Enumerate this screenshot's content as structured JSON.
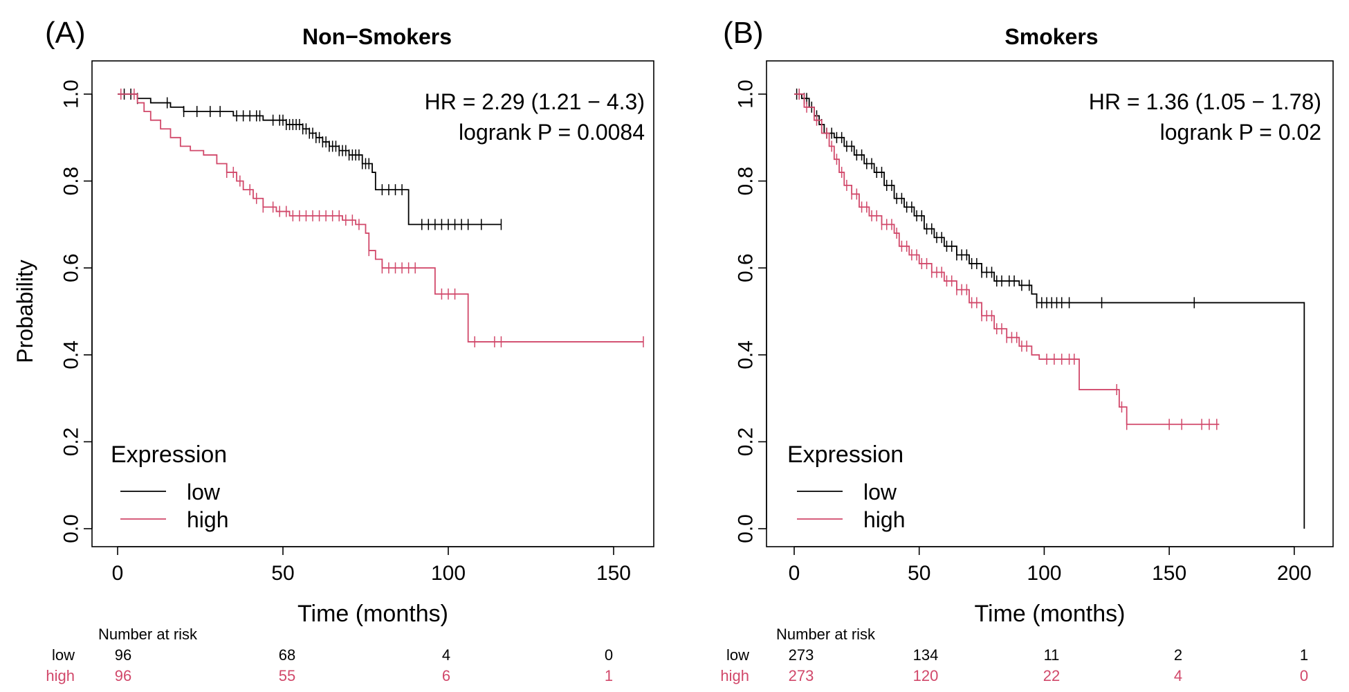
{
  "colors": {
    "low": "#000000",
    "high": "#D1486A"
  },
  "chart_data": [
    {
      "type": "line",
      "panel_label": "(A)",
      "title": "Non−Smokers",
      "xlabel": "Time (months)",
      "ylabel": "Probability",
      "xlim": [
        0,
        160
      ],
      "ylim": [
        0,
        1
      ],
      "x_ticks": [
        "0",
        "50",
        "100",
        "150"
      ],
      "x_tick_values": [
        0,
        50,
        100,
        150
      ],
      "y_ticks": [
        "0.0",
        "0.2",
        "0.4",
        "0.6",
        "0.8",
        "1.0"
      ],
      "y_tick_values": [
        0,
        0.2,
        0.4,
        0.6,
        0.8,
        1.0
      ],
      "grid": false,
      "legend": {
        "title": "Expression",
        "placement": "bottom-left",
        "entries": [
          "low",
          "high"
        ]
      },
      "annotation": {
        "hr": "HR = 2.29 (1.21 − 4.3)",
        "logrank": "logrank P = 0.0084"
      },
      "series": [
        {
          "name": "low",
          "steps": [
            [
              0,
              1.0
            ],
            [
              6,
              0.99
            ],
            [
              10,
              0.98
            ],
            [
              16,
              0.97
            ],
            [
              20,
              0.96
            ],
            [
              35,
              0.95
            ],
            [
              44,
              0.94
            ],
            [
              51,
              0.93
            ],
            [
              56,
              0.92
            ],
            [
              58,
              0.91
            ],
            [
              60,
              0.9
            ],
            [
              62,
              0.89
            ],
            [
              64,
              0.88
            ],
            [
              67,
              0.87
            ],
            [
              70,
              0.86
            ],
            [
              74,
              0.84
            ],
            [
              77,
              0.82
            ],
            [
              78,
              0.78
            ],
            [
              88,
              0.78
            ],
            [
              88,
              0.7
            ],
            [
              116,
              0.7
            ]
          ],
          "censor_times": [
            2,
            4,
            6,
            15,
            20,
            24,
            28,
            31,
            36,
            38,
            40,
            42,
            43,
            47,
            49,
            50,
            51,
            52,
            53,
            54,
            55,
            56,
            57,
            58,
            59,
            60,
            61,
            62,
            63,
            64,
            65,
            66,
            67,
            68,
            69,
            70,
            71,
            72,
            73,
            74,
            75,
            76,
            80,
            82,
            84,
            86,
            92,
            94,
            96,
            98,
            100,
            102,
            104,
            106,
            110,
            116
          ]
        },
        {
          "name": "high",
          "steps": [
            [
              0,
              1.0
            ],
            [
              6,
              0.98
            ],
            [
              8,
              0.96
            ],
            [
              10,
              0.94
            ],
            [
              13,
              0.92
            ],
            [
              16,
              0.9
            ],
            [
              19,
              0.88
            ],
            [
              22,
              0.87
            ],
            [
              26,
              0.86
            ],
            [
              30,
              0.84
            ],
            [
              33,
              0.82
            ],
            [
              36,
              0.8
            ],
            [
              38,
              0.78
            ],
            [
              41,
              0.76
            ],
            [
              44,
              0.74
            ],
            [
              48,
              0.73
            ],
            [
              52,
              0.72
            ],
            [
              68,
              0.71
            ],
            [
              72,
              0.7
            ],
            [
              75,
              0.68
            ],
            [
              76,
              0.64
            ],
            [
              78,
              0.62
            ],
            [
              80,
              0.6
            ],
            [
              96,
              0.6
            ],
            [
              96,
              0.54
            ],
            [
              106,
              0.54
            ],
            [
              106,
              0.43
            ],
            [
              159,
              0.43
            ]
          ],
          "censor_times": [
            1,
            5,
            33,
            35,
            37,
            40,
            42,
            44,
            47,
            49,
            51,
            53,
            55,
            57,
            59,
            61,
            63,
            65,
            67,
            69,
            71,
            73,
            76,
            80,
            82,
            84,
            86,
            88,
            90,
            98,
            100,
            102,
            108,
            114,
            116,
            159
          ]
        }
      ],
      "at_risk": {
        "header": "Number at risk",
        "rows": [
          {
            "label": "low",
            "values": [
              "96",
              "68",
              "4",
              "0"
            ]
          },
          {
            "label": "high",
            "values": [
              "96",
              "55",
              "6",
              "1"
            ]
          }
        ]
      }
    },
    {
      "type": "line",
      "panel_label": "(B)",
      "title": "Smokers",
      "xlabel": "Time (months)",
      "ylabel": "",
      "xlim": [
        0,
        210
      ],
      "ylim": [
        0,
        1
      ],
      "x_ticks": [
        "0",
        "50",
        "100",
        "150",
        "200"
      ],
      "x_tick_values": [
        0,
        50,
        100,
        150,
        200
      ],
      "y_ticks": [
        "0.0",
        "0.2",
        "0.4",
        "0.6",
        "0.8",
        "1.0"
      ],
      "y_tick_values": [
        0,
        0.2,
        0.4,
        0.6,
        0.8,
        1.0
      ],
      "grid": false,
      "legend": {
        "title": "Expression",
        "placement": "bottom-left",
        "entries": [
          "low",
          "high"
        ]
      },
      "annotation": {
        "hr": "HR = 1.36 (1.05 − 1.78)",
        "logrank": "logrank P = 0.02"
      },
      "series": [
        {
          "name": "low",
          "steps": [
            [
              0,
              1.0
            ],
            [
              3,
              0.99
            ],
            [
              6,
              0.97
            ],
            [
              8,
              0.95
            ],
            [
              10,
              0.93
            ],
            [
              12,
              0.91
            ],
            [
              16,
              0.9
            ],
            [
              20,
              0.88
            ],
            [
              24,
              0.86
            ],
            [
              28,
              0.84
            ],
            [
              32,
              0.82
            ],
            [
              36,
              0.79
            ],
            [
              40,
              0.76
            ],
            [
              44,
              0.74
            ],
            [
              48,
              0.72
            ],
            [
              52,
              0.69
            ],
            [
              56,
              0.67
            ],
            [
              60,
              0.65
            ],
            [
              65,
              0.63
            ],
            [
              70,
              0.61
            ],
            [
              75,
              0.59
            ],
            [
              80,
              0.57
            ],
            [
              90,
              0.56
            ],
            [
              95,
              0.54
            ],
            [
              97,
              0.52
            ],
            [
              204,
              0.52
            ],
            [
              204,
              0.0
            ]
          ],
          "censor_times": [
            1,
            2,
            4,
            5,
            7,
            9,
            11,
            13,
            15,
            17,
            19,
            21,
            23,
            25,
            27,
            29,
            31,
            33,
            35,
            37,
            39,
            41,
            43,
            45,
            47,
            49,
            51,
            53,
            55,
            57,
            59,
            61,
            63,
            65,
            67,
            69,
            71,
            73,
            75,
            77,
            79,
            81,
            83,
            86,
            88,
            91,
            94,
            97,
            99,
            101,
            103,
            105,
            107,
            110,
            123,
            160
          ]
        },
        {
          "name": "high",
          "steps": [
            [
              0,
              1.0
            ],
            [
              4,
              0.97
            ],
            [
              8,
              0.94
            ],
            [
              11,
              0.91
            ],
            [
              14,
              0.88
            ],
            [
              16,
              0.85
            ],
            [
              18,
              0.82
            ],
            [
              20,
              0.79
            ],
            [
              23,
              0.77
            ],
            [
              26,
              0.74
            ],
            [
              30,
              0.72
            ],
            [
              35,
              0.7
            ],
            [
              40,
              0.68
            ],
            [
              42,
              0.65
            ],
            [
              46,
              0.63
            ],
            [
              50,
              0.61
            ],
            [
              55,
              0.59
            ],
            [
              60,
              0.57
            ],
            [
              65,
              0.55
            ],
            [
              70,
              0.52
            ],
            [
              75,
              0.49
            ],
            [
              80,
              0.46
            ],
            [
              85,
              0.44
            ],
            [
              90,
              0.42
            ],
            [
              95,
              0.4
            ],
            [
              98,
              0.39
            ],
            [
              114,
              0.39
            ],
            [
              114,
              0.32
            ],
            [
              128,
              0.32
            ],
            [
              130,
              0.28
            ],
            [
              133,
              0.24
            ],
            [
              170,
              0.24
            ]
          ],
          "censor_times": [
            2,
            5,
            9,
            13,
            15,
            17,
            19,
            21,
            23,
            25,
            27,
            29,
            31,
            33,
            35,
            37,
            39,
            41,
            43,
            45,
            47,
            49,
            51,
            53,
            55,
            57,
            59,
            61,
            63,
            65,
            67,
            69,
            71,
            73,
            75,
            77,
            79,
            81,
            83,
            85,
            87,
            89,
            91,
            93,
            101,
            104,
            107,
            110,
            112,
            129,
            131,
            133,
            150,
            155,
            163,
            166,
            169
          ]
        }
      ],
      "at_risk": {
        "header": "Number at risk",
        "rows": [
          {
            "label": "low",
            "values": [
              "273",
              "134",
              "11",
              "2",
              "1"
            ]
          },
          {
            "label": "high",
            "values": [
              "273",
              "120",
              "22",
              "4",
              "0"
            ]
          }
        ]
      }
    }
  ]
}
